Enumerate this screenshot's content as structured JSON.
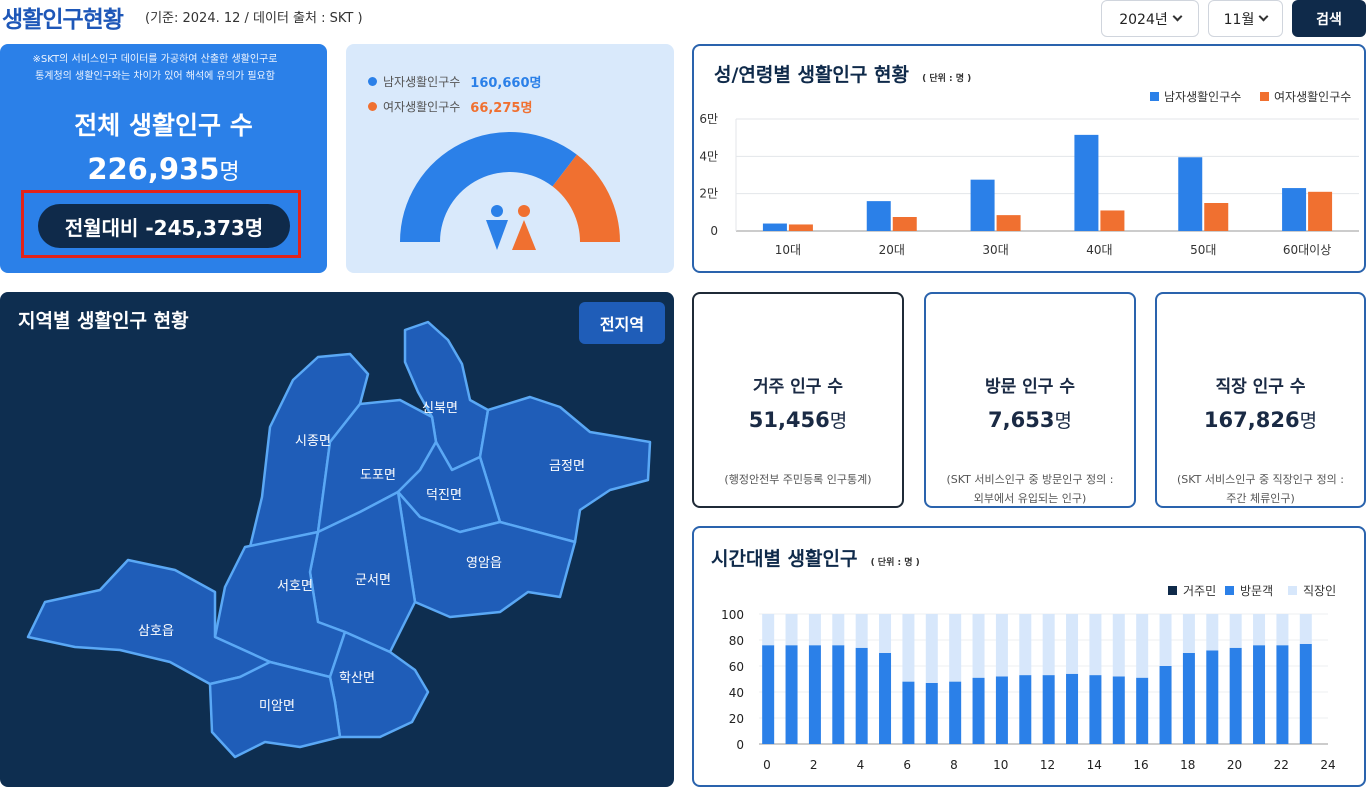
{
  "header": {
    "title": "생활인구현황",
    "subtitle": "(기준: 2024. 12 / 데이터 출처 : SKT )",
    "year_select": "2024년",
    "month_select": "11월",
    "search_label": "검색"
  },
  "total": {
    "notice_line1": "※SKT의 서비스인구 데이터를 가공하여 산출한 생활인구로",
    "notice_line2": "통계청의 생활인구와는 차이가 있어 해석에 유의가 필요함",
    "label": "전체 생활인구 수",
    "value": "226,935",
    "unit": "명",
    "mom": "전월대비 -245,373명"
  },
  "gender": {
    "male_label": "남자생활인구수",
    "male_value": "160,660명",
    "female_label": "여자생활인구수",
    "female_value": "66,275명",
    "male_count": 160660,
    "female_count": 66275,
    "male_color": "#2b80e8",
    "female_color": "#f07030"
  },
  "age_chart": {
    "title": "성/연령별 생활인구 현황",
    "unit_note": "( 단위 : 명 )",
    "y_ticks": [
      "0",
      "2만",
      "4만",
      "6만"
    ],
    "chart_data": {
      "type": "bar",
      "categories": [
        "10대",
        "20대",
        "30대",
        "40대",
        "50대",
        "60대이상"
      ],
      "series": [
        {
          "name": "남자생활인구수",
          "color": "#2b80e8",
          "values": [
            4000,
            16000,
            27500,
            51500,
            39500,
            23000
          ]
        },
        {
          "name": "여자생활인구수",
          "color": "#f07030",
          "values": [
            3500,
            7500,
            8500,
            11000,
            15000,
            21000
          ]
        }
      ],
      "ylim": [
        0,
        60000
      ]
    }
  },
  "map": {
    "title": "지역별 생활인구 현황",
    "all_region_label": "전지역",
    "regions": [
      "신북면",
      "시종면",
      "도포면",
      "금정면",
      "덕진면",
      "영암읍",
      "군서면",
      "서호면",
      "삼호읍",
      "학산면",
      "미암면"
    ]
  },
  "stats": [
    {
      "title": "거주 인구 수",
      "value": "51,456",
      "unit": "명",
      "note1": "(행정안전부 주민등록 인구통계)",
      "note2": ""
    },
    {
      "title": "방문 인구 수",
      "value": "7,653",
      "unit": "명",
      "note1": "(SKT 서비스인구 중 방문인구 정의 :",
      "note2": "외부에서 유입되는 인구)"
    },
    {
      "title": "직장 인구 수",
      "value": "167,826",
      "unit": "명",
      "note1": "(SKT 서비스인구 중 직장인구 정의 :",
      "note2": "주간 체류인구)"
    }
  ],
  "hour_chart": {
    "title": "시간대별 생활인구",
    "unit_note": "( 단위 : 명 )",
    "x_ticks": [
      "0",
      "2",
      "4",
      "6",
      "8",
      "10",
      "12",
      "14",
      "16",
      "18",
      "20",
      "22",
      "24"
    ],
    "y_ticks": [
      "0",
      "20",
      "40",
      "60",
      "80",
      "100"
    ],
    "chart_data": {
      "type": "bar",
      "stacked": true,
      "x": [
        0,
        1,
        2,
        3,
        4,
        5,
        6,
        7,
        8,
        9,
        10,
        11,
        12,
        13,
        14,
        15,
        16,
        17,
        18,
        19,
        20,
        21,
        22,
        23
      ],
      "series": [
        {
          "name": "거주민",
          "color": "#0f2a4a",
          "values": [
            0,
            0,
            0,
            0,
            0,
            0,
            0,
            0,
            0,
            0,
            0,
            0,
            0,
            0,
            0,
            0,
            0,
            0,
            0,
            0,
            0,
            0,
            0,
            0
          ]
        },
        {
          "name": "방문객",
          "color": "#2b80e8",
          "values": [
            76,
            76,
            76,
            76,
            74,
            70,
            48,
            47,
            48,
            51,
            52,
            53,
            53,
            54,
            53,
            52,
            51,
            60,
            70,
            72,
            74,
            76,
            76,
            77
          ]
        },
        {
          "name": "직장인",
          "color": "#d7e7fb",
          "values": [
            24,
            24,
            24,
            24,
            26,
            30,
            52,
            53,
            52,
            49,
            48,
            47,
            47,
            46,
            47,
            48,
            49,
            40,
            30,
            28,
            26,
            24,
            24,
            23
          ]
        }
      ],
      "ylim": [
        0,
        100
      ]
    }
  }
}
